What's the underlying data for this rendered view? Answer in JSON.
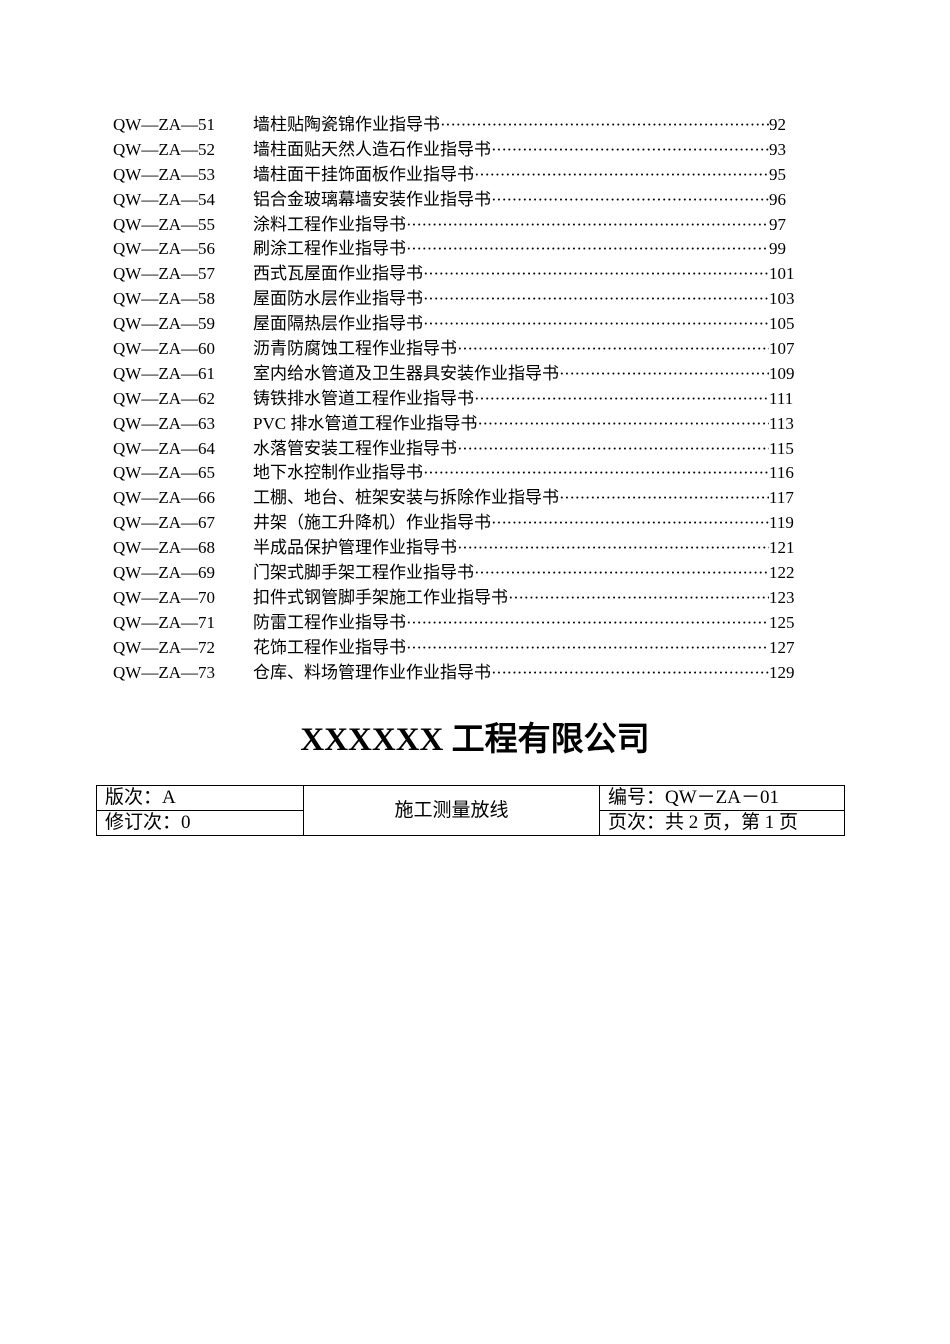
{
  "toc": [
    {
      "code": "QW—ZA—51",
      "title": "墙柱贴陶瓷锦作业指导书",
      "page": "92"
    },
    {
      "code": "QW—ZA—52",
      "title": "墙柱面贴天然人造石作业指导书",
      "page": "93"
    },
    {
      "code": "QW—ZA—53",
      "title": "墙柱面干挂饰面板作业指导书",
      "page": "95"
    },
    {
      "code": "QW—ZA—54",
      "title": "铝合金玻璃幕墙安装作业指导书",
      "page": "96"
    },
    {
      "code": "QW—ZA—55",
      "title": "涂料工程作业指导书",
      "page": "97"
    },
    {
      "code": "QW—ZA—56",
      "title": "刷涂工程作业指导书",
      "page": "99"
    },
    {
      "code": "QW—ZA—57",
      "title": "西式瓦屋面作业指导书",
      "page": "101"
    },
    {
      "code": "QW—ZA—58",
      "title": "屋面防水层作业指导书",
      "page": "103"
    },
    {
      "code": "QW—ZA—59",
      "title": "屋面隔热层作业指导书",
      "page": "105"
    },
    {
      "code": "QW—ZA—60",
      "title": "沥青防腐蚀工程作业指导书",
      "page": "107"
    },
    {
      "code": "QW—ZA—61",
      "title": "室内给水管道及卫生器具安装作业指导书",
      "page": "109"
    },
    {
      "code": "QW—ZA—62",
      "title": "铸铁排水管道工程作业指导书",
      "page": "111"
    },
    {
      "code": "QW—ZA—63",
      "title": "PVC 排水管道工程作业指导书",
      "page": "113"
    },
    {
      "code": "QW—ZA—64",
      "title": "水落管安装工程作业指导书",
      "page": "115"
    },
    {
      "code": "QW—ZA—65",
      "title": "地下水控制作业指导书",
      "page": "116"
    },
    {
      "code": "QW—ZA—66",
      "title": "工棚、地台、桩架安装与拆除作业指导书",
      "page": "117"
    },
    {
      "code": "QW—ZA—67",
      "title": "井架（施工升降机）作业指导书",
      "page": "119"
    },
    {
      "code": "QW—ZA—68",
      "title": "半成品保护管理作业指导书",
      "page": "121"
    },
    {
      "code": "QW—ZA—69",
      "title": "门架式脚手架工程作业指导书",
      "page": "122"
    },
    {
      "code": "QW—ZA—70",
      "title": "扣件式钢管脚手架施工作业指导书",
      "page": "123"
    },
    {
      "code": "QW—ZA—71",
      "title": "防雷工程作业指导书",
      "page": "125"
    },
    {
      "code": "QW—ZA—72",
      "title": "花饰工程作业指导书",
      "page": "127"
    },
    {
      "code": "QW—ZA—73",
      "title": "仓库、料场管理作业作业指导书",
      "page": "129"
    }
  ],
  "company": "XXXXXX 工程有限公司",
  "header_table": {
    "edition": "版次：A",
    "revision": "修订次：0",
    "subject": "施工测量放线",
    "number": "编号：QW－ZA－01",
    "pages": "页次：共 2 页，第 1 页"
  }
}
